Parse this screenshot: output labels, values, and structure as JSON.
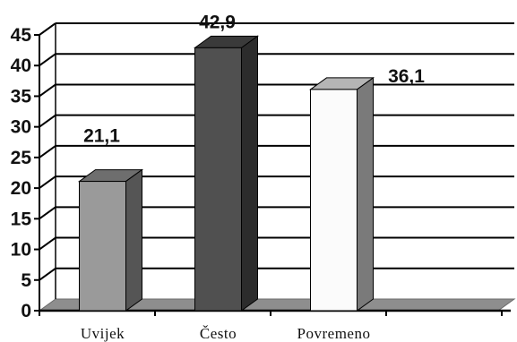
{
  "chart_data": {
    "type": "bar",
    "categories": [
      "Uvijek",
      "Često",
      "Povremeno"
    ],
    "values": [
      21.1,
      42.9,
      36.1
    ],
    "value_labels": [
      "21,1",
      "42,9",
      "36,1"
    ],
    "y_ticks": [
      "0",
      "5",
      "10",
      "15",
      "20",
      "25",
      "30",
      "35",
      "40",
      "45"
    ],
    "ylim": [
      0,
      45
    ],
    "grid": true,
    "style": "3d-bar",
    "bar_colors": {
      "front": [
        "#9a9a9a",
        "#505050",
        "#fbfbfb"
      ],
      "side": [
        "#555555",
        "#2c2c2c",
        "#7a7a7a"
      ],
      "top": [
        "#6e6e6e",
        "#3a3a3a",
        "#b5b5b5"
      ]
    },
    "floor_color": "#8e8e8e",
    "title": "",
    "xlabel": "",
    "ylabel": ""
  }
}
